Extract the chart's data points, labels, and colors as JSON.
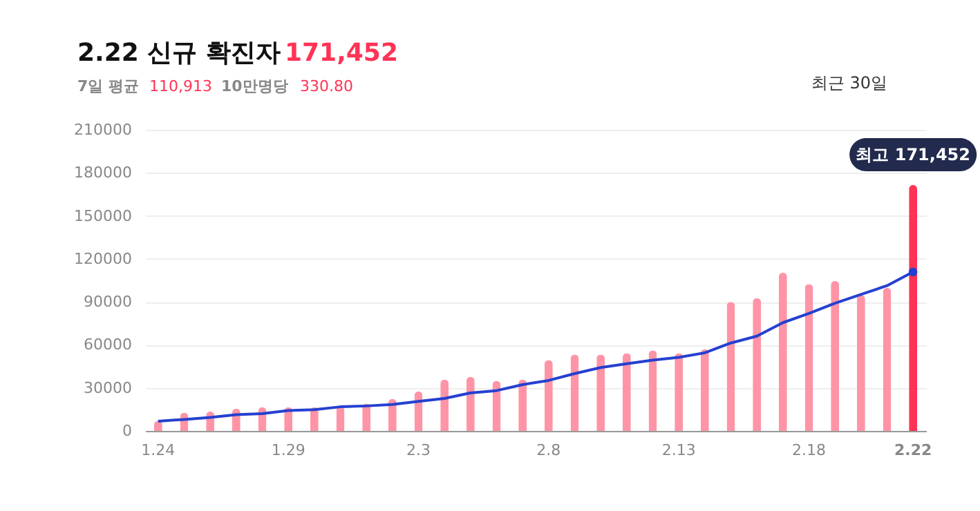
{
  "chart_data": {
    "type": "bar",
    "title": "2.22 신규 확진자",
    "categories": [
      "1.24",
      null,
      null,
      null,
      null,
      "1.29",
      null,
      null,
      null,
      null,
      "2.3",
      null,
      null,
      null,
      null,
      "2.8",
      null,
      null,
      null,
      null,
      "2.13",
      null,
      null,
      null,
      null,
      "2.18",
      null,
      null,
      null,
      "2.22"
    ],
    "series": [
      {
        "values": [
          7100,
          12600,
          13500,
          15500,
          16500,
          16500,
          16500,
          17000,
          19000,
          22300,
          27400,
          35800,
          37700,
          34800,
          35800,
          49400,
          53200,
          53200,
          54200,
          56100,
          54200,
          56800,
          90000,
          92600,
          110300,
          102300,
          104500,
          94800,
          99700,
          171452
        ],
        "colors": [
          "#ff94a6",
          "#ff94a6",
          "#ff94a6",
          "#ff94a6",
          "#ff94a6",
          "#ff94a6",
          "#ff94a6",
          "#ff94a6",
          "#ff94a6",
          "#ff94a6",
          "#ff94a6",
          "#ff94a6",
          "#ff94a6",
          "#ff94a6",
          "#ff94a6",
          "#ff94a6",
          "#ff94a6",
          "#ff94a6",
          "#ff94a6",
          "#ff94a6",
          "#ff94a6",
          "#ff94a6",
          "#ff94a6",
          "#ff94a6",
          "#ff94a6",
          "#ff94a6",
          "#ff94a6",
          "#ff94a6",
          "#ff94a6",
          "#ff3355"
        ]
      },
      {
        "type": "line",
        "color": "#2540d0",
        "values": [
          6800,
          8000,
          9400,
          11300,
          12000,
          14200,
          14800,
          16800,
          17400,
          18400,
          20600,
          22600,
          26500,
          28100,
          32300,
          35200,
          40000,
          44200,
          46800,
          49400,
          51300,
          54500,
          61300,
          66100,
          75500,
          81900,
          89000,
          95200,
          101300,
          110913
        ]
      }
    ],
    "ylim": [
      0,
      210000
    ],
    "yticks": [
      0,
      30000,
      60000,
      90000,
      120000,
      150000,
      180000,
      210000
    ],
    "grid": "y",
    "line_style": "solid",
    "annotations": [
      "171,452",
      "7일 평균",
      "110,913",
      "10만명당",
      "330.80",
      "최근 30일",
      {
        "text": "최고 171,452",
        "x": "2.22",
        "y": 171452
      }
    ]
  }
}
